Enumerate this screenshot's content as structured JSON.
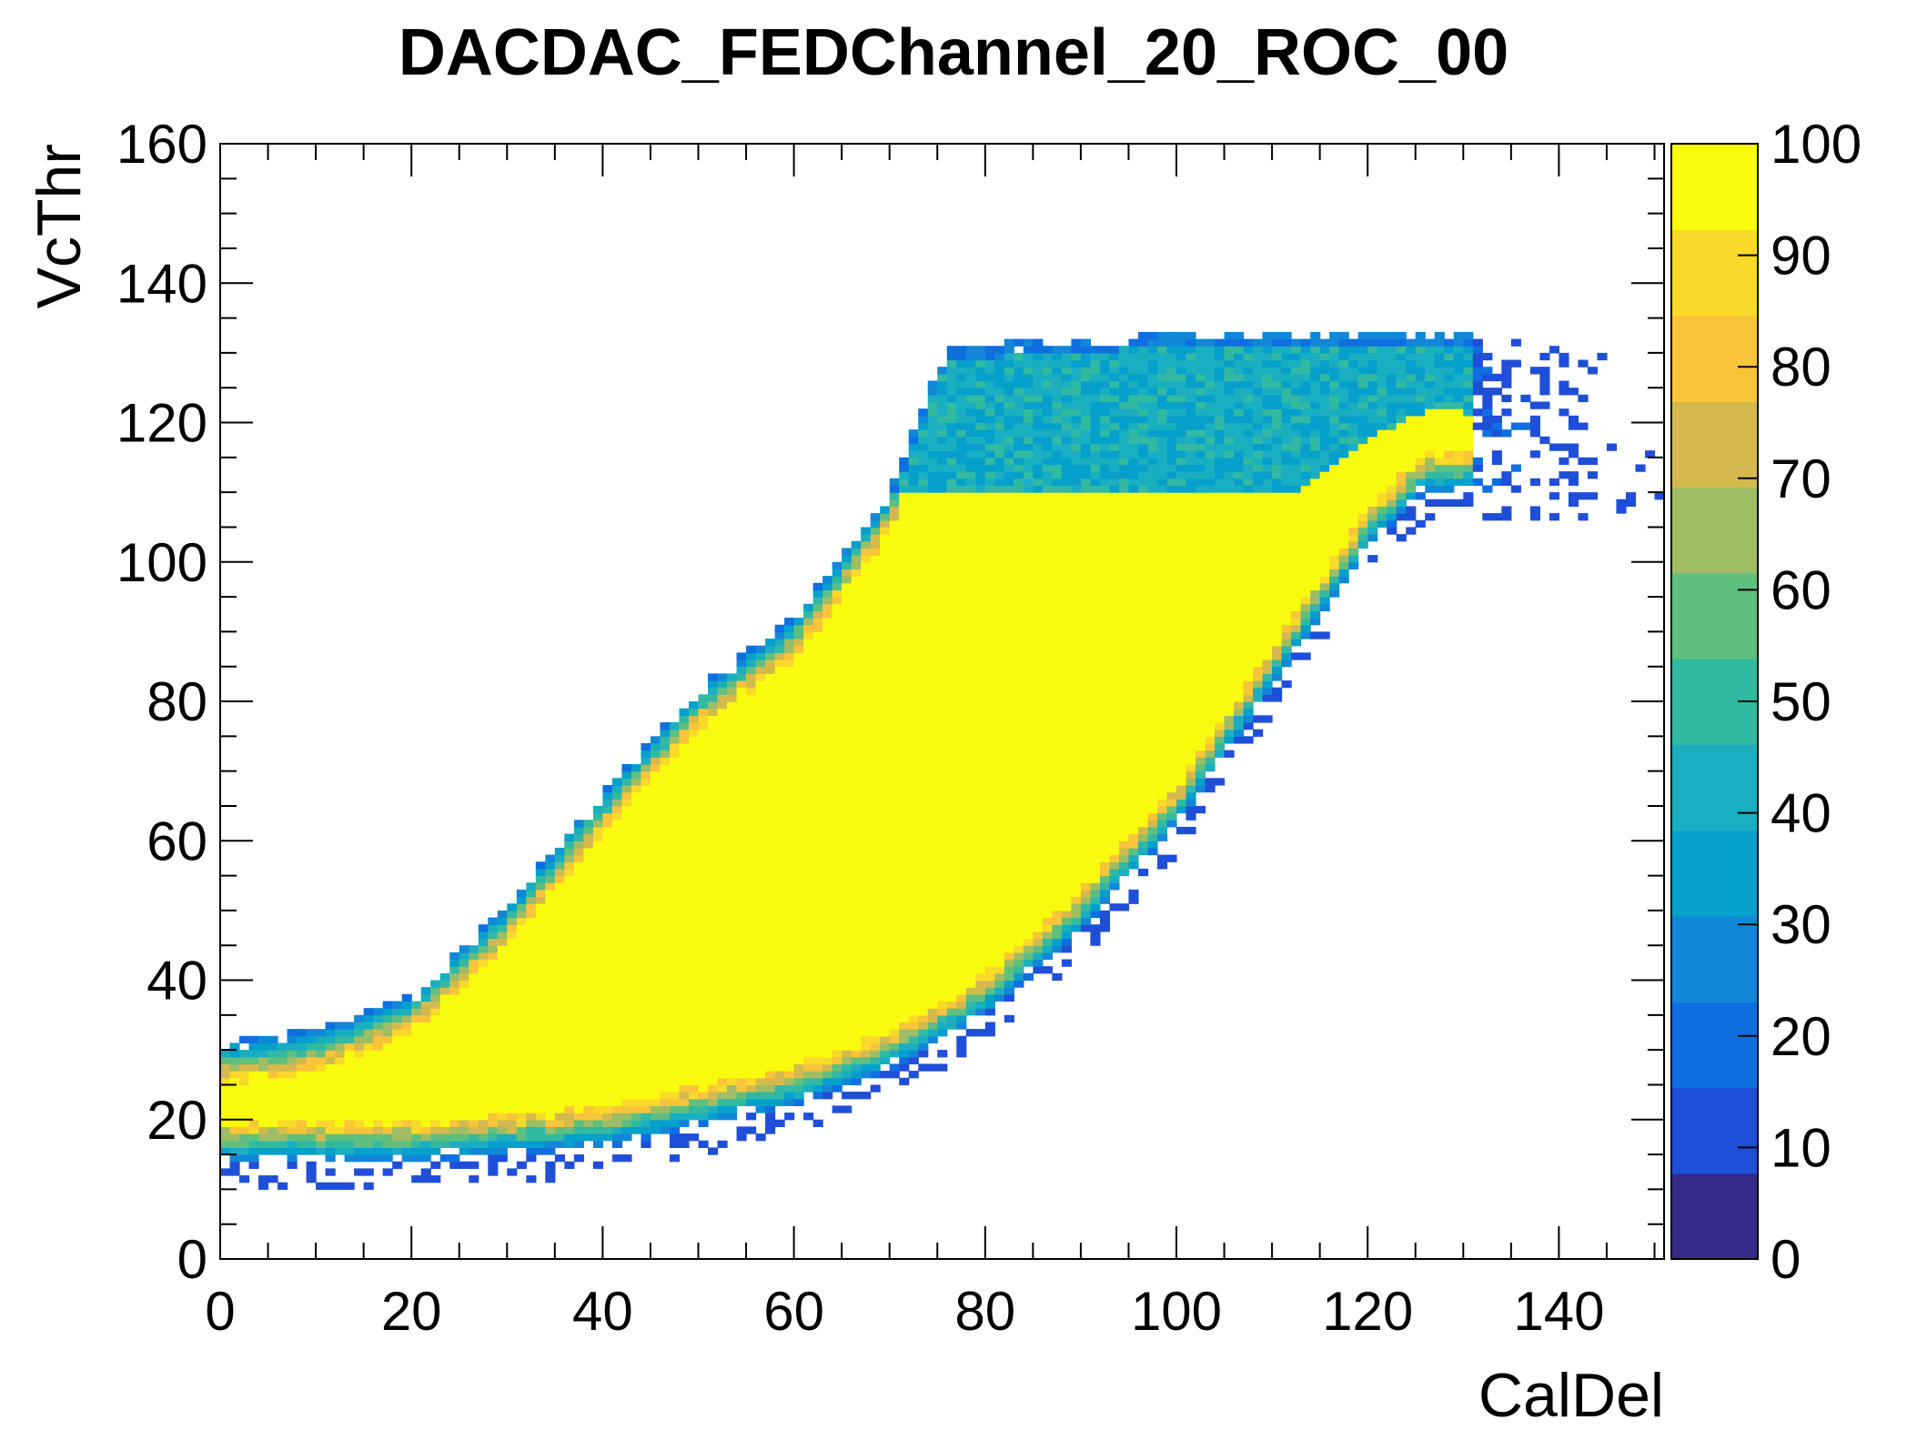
{
  "chart_data": {
    "type": "heatmap",
    "title": "DACDAC_FEDChannel_20_ROC_00",
    "xlabel": "CalDel",
    "ylabel": "VcThr",
    "xlim": [
      0,
      151
    ],
    "ylim": [
      0,
      160
    ],
    "zlim": [
      0,
      100
    ],
    "x_ticks": [
      "0",
      "20",
      "40",
      "60",
      "80",
      "100",
      "120",
      "140"
    ],
    "y_ticks": [
      "0",
      "20",
      "40",
      "60",
      "80",
      "100",
      "120",
      "140",
      "160"
    ],
    "z_ticks": [
      "0",
      "10",
      "20",
      "30",
      "40",
      "50",
      "60",
      "70",
      "80",
      "90",
      "100"
    ],
    "bin_width": 1,
    "colormap": [
      "#352a87",
      "#1f4fd8",
      "#0f6fe0",
      "#1287d8",
      "#06a0cc",
      "#19afc1",
      "#32b9a2",
      "#5fbf7f",
      "#9ebd64",
      "#d4ba4e",
      "#f9c439",
      "#f9d92a",
      "#f9fb0e"
    ],
    "efficiency_band": {
      "description_points_lower_edge": [
        [
          0,
          14
        ],
        [
          20,
          14
        ],
        [
          40,
          16
        ],
        [
          60,
          22
        ],
        [
          70,
          27
        ],
        [
          80,
          35
        ],
        [
          90,
          47
        ],
        [
          100,
          62
        ],
        [
          110,
          82
        ],
        [
          120,
          102
        ],
        [
          126,
          110
        ]
      ],
      "description_points_upper_edge": [
        [
          0,
          31
        ],
        [
          10,
          33
        ],
        [
          20,
          38
        ],
        [
          30,
          51
        ],
        [
          40,
          67
        ],
        [
          50,
          82
        ],
        [
          60,
          92
        ],
        [
          70,
          110
        ],
        [
          76,
          131
        ],
        [
          100,
          133
        ],
        [
          130,
          133
        ],
        [
          140,
          132
        ]
      ],
      "plateau": 100,
      "noise_region_value": 40,
      "noise_region_vcthr": [
        110,
        132
      ]
    }
  }
}
